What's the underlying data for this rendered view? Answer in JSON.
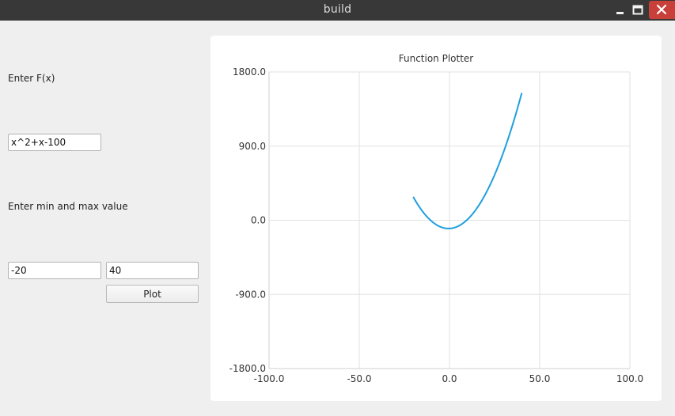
{
  "window": {
    "title": "build",
    "controls": [
      "minimize-icon",
      "maximize-icon",
      "close-icon"
    ]
  },
  "form": {
    "function_label": "Enter F(x)",
    "function_value": "x^2+x-100",
    "range_label": "Enter min and max value",
    "min_value": "-20",
    "max_value": "40",
    "plot_button": "Plot"
  },
  "colors": {
    "titlebar": "#383838",
    "close_button": "#c9403a",
    "series": "#209fdf"
  },
  "chart_data": {
    "type": "line",
    "title": "Function Plotter",
    "xlabel": "",
    "ylabel": "",
    "xlim": [
      -100,
      100
    ],
    "ylim": [
      -1800,
      1800
    ],
    "x_ticks": [
      -100,
      -50,
      0,
      50,
      100
    ],
    "y_ticks": [
      1800,
      900,
      0,
      -900,
      -1800
    ],
    "x_tick_labels": [
      "-100.0",
      "-50.0",
      "0.0",
      "50.0",
      "100.0"
    ],
    "y_tick_labels": [
      "1800.0",
      "900.0",
      "0.0",
      "-900.0",
      "-1800.0"
    ],
    "grid": true,
    "series": [
      {
        "function": "x^2+x-100",
        "x": [
          -20,
          -15,
          -10,
          -5,
          0,
          5,
          10,
          15,
          20,
          25,
          30,
          35,
          40
        ],
        "values": [
          280,
          110,
          -10,
          -80,
          -100,
          -70,
          10,
          140,
          320,
          550,
          830,
          1160,
          1540
        ]
      }
    ]
  }
}
